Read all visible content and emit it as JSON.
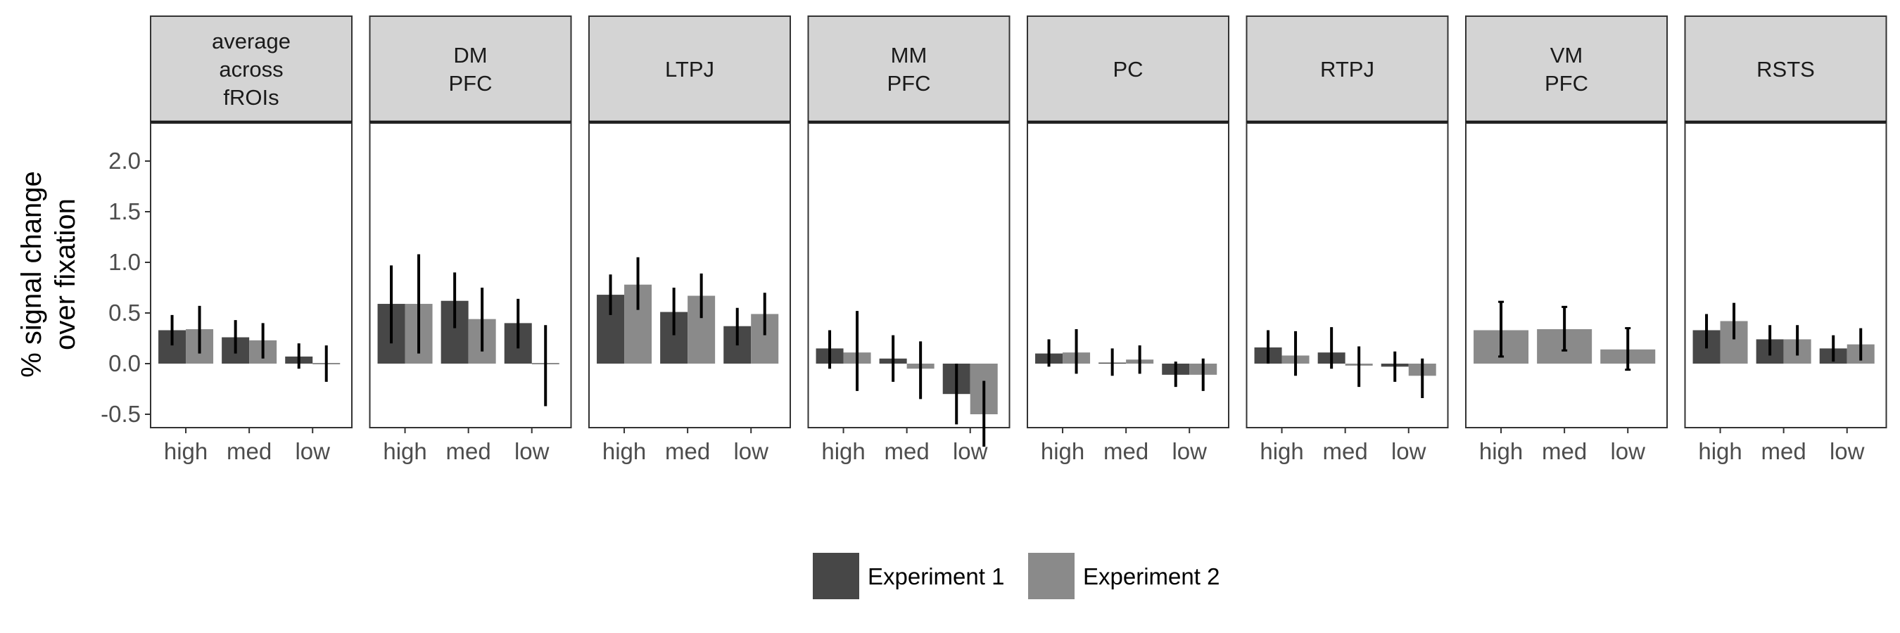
{
  "chart_data": {
    "type": "bar",
    "ylabel": [
      "% signal change",
      "over fixation"
    ],
    "xlabel": "",
    "ylim": [
      -0.62,
      2.3
    ],
    "yticks": [
      -0.5,
      0.0,
      0.5,
      1.0,
      1.5,
      2.0
    ],
    "ytick_labels": [
      "-0.5",
      "0.0",
      "0.5",
      "1.0",
      "1.5",
      "2.0"
    ],
    "categories": [
      "high",
      "med",
      "low"
    ],
    "legend_position": "bottom",
    "series": [
      {
        "name": "Experiment 1",
        "color": "#474747"
      },
      {
        "name": "Experiment 2",
        "color": "#8a8a8a"
      }
    ],
    "panels": [
      {
        "title": [
          "average",
          "across",
          "fROIs"
        ],
        "exp1": {
          "values": [
            0.33,
            0.26,
            0.07
          ],
          "err_low": [
            0.18,
            0.1,
            -0.05
          ],
          "err_high": [
            0.48,
            0.43,
            0.2
          ]
        },
        "exp2": {
          "values": [
            0.34,
            0.23,
            0.0
          ],
          "err_low": [
            0.1,
            0.05,
            -0.18
          ],
          "err_high": [
            0.57,
            0.4,
            0.18
          ]
        }
      },
      {
        "title": [
          "DM",
          "PFC"
        ],
        "exp1": {
          "values": [
            0.59,
            0.62,
            0.4
          ],
          "err_low": [
            0.2,
            0.35,
            0.15
          ],
          "err_high": [
            0.97,
            0.9,
            0.64
          ]
        },
        "exp2": {
          "values": [
            0.59,
            0.44,
            0.0
          ],
          "err_low": [
            0.1,
            0.12,
            -0.42
          ],
          "err_high": [
            1.08,
            0.75,
            0.38
          ]
        }
      },
      {
        "title": [
          "LTPJ"
        ],
        "exp1": {
          "values": [
            0.68,
            0.51,
            0.37
          ],
          "err_low": [
            0.48,
            0.28,
            0.18
          ],
          "err_high": [
            0.88,
            0.75,
            0.55
          ]
        },
        "exp2": {
          "values": [
            0.78,
            0.67,
            0.49
          ],
          "err_low": [
            0.53,
            0.45,
            0.28
          ],
          "err_high": [
            1.05,
            0.89,
            0.7
          ]
        }
      },
      {
        "title": [
          "MM",
          "PFC"
        ],
        "exp1": {
          "values": [
            0.15,
            0.05,
            -0.3
          ],
          "err_low": [
            -0.05,
            -0.18,
            -0.6
          ],
          "err_high": [
            0.33,
            0.28,
            0.0
          ]
        },
        "exp2": {
          "values": [
            0.11,
            -0.05,
            -0.5
          ],
          "err_low": [
            -0.27,
            -0.35,
            -0.82
          ],
          "err_high": [
            0.52,
            0.22,
            -0.17
          ]
        }
      },
      {
        "title": [
          "PC"
        ],
        "exp1": {
          "values": [
            0.1,
            0.01,
            -0.11
          ],
          "err_low": [
            -0.03,
            -0.12,
            -0.23
          ],
          "err_high": [
            0.24,
            0.15,
            0.02
          ]
        },
        "exp2": {
          "values": [
            0.11,
            0.04,
            -0.11
          ],
          "err_low": [
            -0.1,
            -0.1,
            -0.27
          ],
          "err_high": [
            0.34,
            0.18,
            0.05
          ]
        }
      },
      {
        "title": [
          "RTPJ"
        ],
        "exp1": {
          "values": [
            0.16,
            0.11,
            -0.03
          ],
          "err_low": [
            0.0,
            -0.05,
            -0.18
          ],
          "err_high": [
            0.33,
            0.36,
            0.12
          ]
        },
        "exp2": {
          "values": [
            0.08,
            -0.02,
            -0.12
          ],
          "err_low": [
            -0.12,
            -0.23,
            -0.34
          ],
          "err_high": [
            0.32,
            0.17,
            0.05
          ]
        }
      },
      {
        "title": [
          "VM",
          "PFC"
        ],
        "exp1": {
          "values": [
            null,
            null,
            null
          ],
          "err_low": [
            null,
            null,
            null
          ],
          "err_high": [
            null,
            null,
            null
          ]
        },
        "exp2": {
          "values": [
            0.33,
            0.34,
            0.14
          ],
          "err_low": [
            0.07,
            0.13,
            -0.06
          ],
          "err_high": [
            0.61,
            0.56,
            0.35
          ]
        }
      },
      {
        "title": [
          "RSTS"
        ],
        "exp1": {
          "values": [
            0.33,
            0.24,
            0.15
          ],
          "err_low": [
            0.15,
            0.08,
            0.02
          ],
          "err_high": [
            0.49,
            0.38,
            0.28
          ]
        },
        "exp2": {
          "values": [
            0.42,
            0.24,
            0.19
          ],
          "err_low": [
            0.24,
            0.08,
            0.03
          ],
          "err_high": [
            0.6,
            0.38,
            0.35
          ]
        }
      }
    ]
  }
}
